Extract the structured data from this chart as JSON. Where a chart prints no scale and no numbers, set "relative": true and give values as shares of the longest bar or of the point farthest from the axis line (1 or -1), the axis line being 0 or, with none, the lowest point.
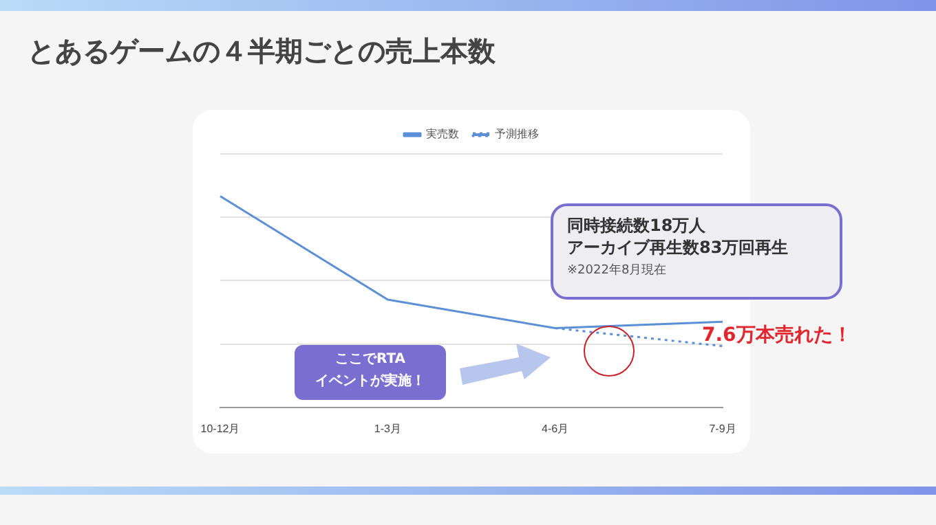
{
  "chart_data": {
    "type": "line",
    "title": "とあるゲームの４半期ごとの売上本数",
    "categories": [
      "10-12月",
      "1-3月",
      "4-6月",
      "7-9月"
    ],
    "relative": true,
    "series": [
      {
        "name": "実売数",
        "color": "#5b8fd6",
        "values": [
          1,
          0.51,
          0.375,
          0.405
        ],
        "line_style": "solid"
      },
      {
        "name": "予測推移",
        "color": "#5b8fd6",
        "values": [
          null,
          null,
          0.375,
          0.29
        ],
        "line_style": "dotted"
      }
    ],
    "legend": "top",
    "grid": "y",
    "marker": "none",
    "annotations": [
      "同時接続数18万人",
      "アーカイブ再生数83万回再生",
      "※2022年8月現在",
      "ここでRTA\nイベントが実施！",
      "7.6万本売れた！"
    ]
  }
}
